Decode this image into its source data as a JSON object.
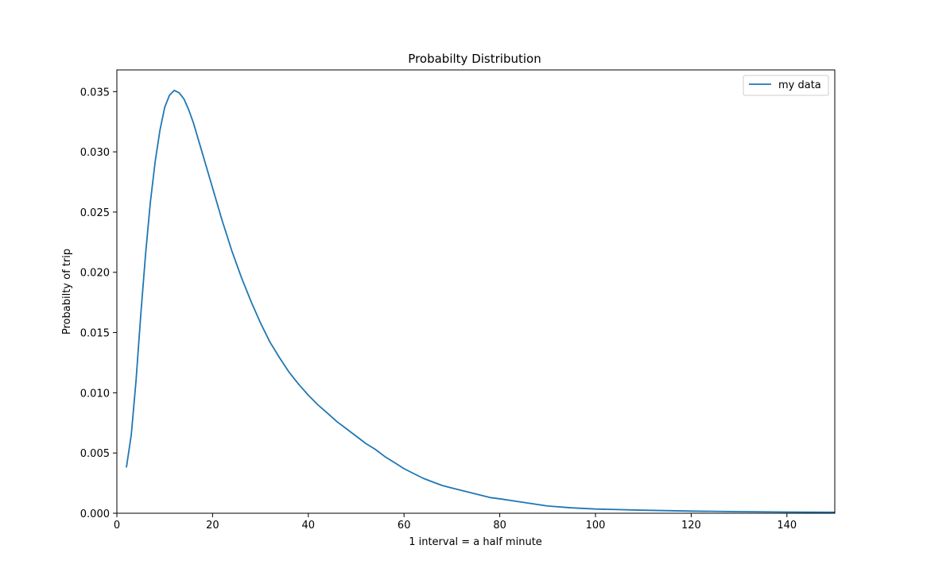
{
  "chart_data": {
    "type": "line",
    "title": "Probabilty Distribution",
    "xlabel": "1 interval = a half minute",
    "ylabel": "Probabilty of trip",
    "xlim": [
      0,
      150
    ],
    "ylim": [
      0,
      0.0368
    ],
    "xticks": [
      0,
      20,
      40,
      60,
      80,
      100,
      120,
      140
    ],
    "xtick_labels": [
      "0",
      "20",
      "40",
      "60",
      "80",
      "100",
      "120",
      "140"
    ],
    "yticks": [
      0,
      0.005,
      0.01,
      0.015,
      0.02,
      0.025,
      0.03,
      0.035
    ],
    "ytick_labels": [
      "0.000",
      "0.005",
      "0.010",
      "0.015",
      "0.020",
      "0.025",
      "0.030",
      "0.035"
    ],
    "grid": false,
    "legend": {
      "position": "top-right",
      "entries": [
        "my data"
      ]
    },
    "series": [
      {
        "name": "my data",
        "color": "#1f77b4",
        "x": [
          2,
          3,
          4,
          5,
          6,
          7,
          8,
          9,
          10,
          11,
          12,
          13,
          14,
          15,
          16,
          18,
          20,
          22,
          24,
          26,
          28,
          30,
          32,
          34,
          36,
          38,
          40,
          42,
          44,
          46,
          48,
          50,
          52,
          54,
          56,
          58,
          60,
          62,
          64,
          66,
          68,
          70,
          72,
          74,
          76,
          78,
          80,
          85,
          90,
          95,
          100,
          110,
          120,
          130,
          140,
          150
        ],
        "y": [
          0.0038,
          0.0065,
          0.011,
          0.0165,
          0.0215,
          0.0258,
          0.0292,
          0.0318,
          0.0337,
          0.0347,
          0.0351,
          0.0349,
          0.0344,
          0.0335,
          0.0324,
          0.0297,
          0.027,
          0.0243,
          0.0218,
          0.0196,
          0.0176,
          0.0158,
          0.0142,
          0.0129,
          0.0117,
          0.0107,
          0.0098,
          0.009,
          0.0083,
          0.0076,
          0.007,
          0.0064,
          0.0058,
          0.0053,
          0.0047,
          0.0042,
          0.0037,
          0.0033,
          0.0029,
          0.0026,
          0.0023,
          0.0021,
          0.0019,
          0.0017,
          0.0015,
          0.0013,
          0.0012,
          0.0009,
          0.0006,
          0.00045,
          0.00035,
          0.00025,
          0.00018,
          0.00013,
          0.0001,
          8e-05
        ]
      }
    ]
  }
}
